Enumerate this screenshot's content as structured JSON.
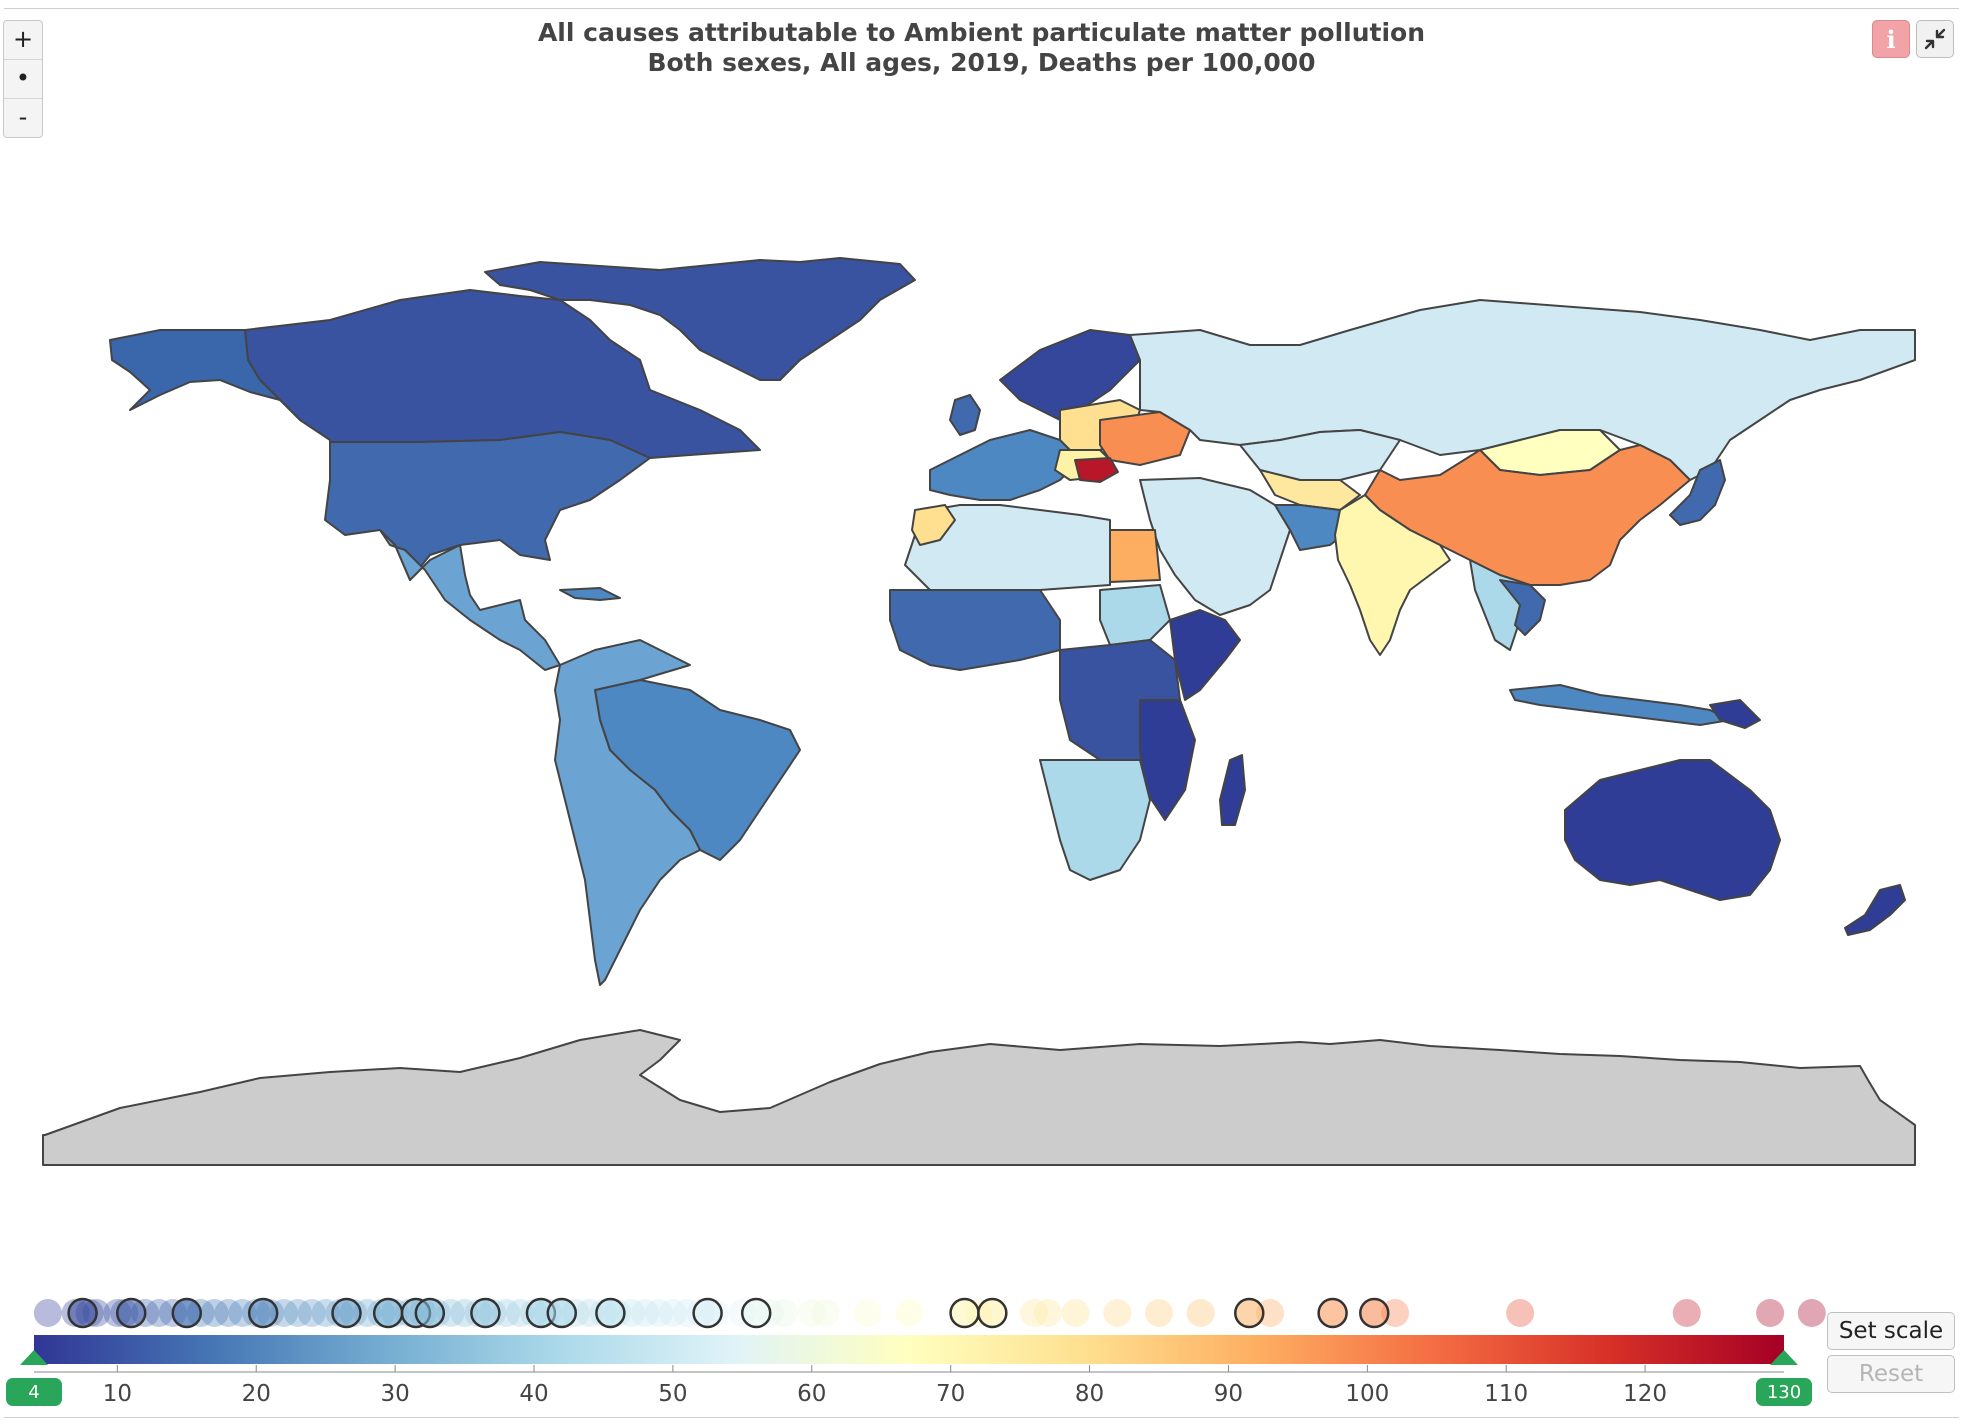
{
  "header": {
    "title_line1": "All causes attributable to Ambient particulate matter pollution",
    "title_line2": "Both sexes, All ages, 2019, Deaths per 100,000"
  },
  "map_controls": {
    "zoom_in": "+",
    "reset_view": "•",
    "zoom_out": "-",
    "info_icon": "i",
    "collapse_icon": "collapse-arrows"
  },
  "buttons": {
    "set_scale": "Set scale",
    "reset": "Reset"
  },
  "colors": {
    "ocean": "#ffffff",
    "no_data": "#cccccc",
    "border": "#444444",
    "handle": "#2aa65a"
  },
  "chart_data": {
    "type": "choropleth",
    "color_scale": {
      "min": 4,
      "max": 130,
      "min_label": "4",
      "max_label": "130",
      "ticks": [
        "10",
        "20",
        "30",
        "40",
        "50",
        "60",
        "70",
        "80",
        "90",
        "100",
        "110",
        "120"
      ],
      "stops": [
        "#313695",
        "#4575b4",
        "#74add1",
        "#abd9e9",
        "#e0f3f8",
        "#ffffbf",
        "#fee090",
        "#fdae61",
        "#f46d43",
        "#d73027",
        "#a50026"
      ]
    },
    "legend_dots": [
      5,
      7,
      8,
      8.5,
      10,
      10.5,
      12,
      13,
      14,
      15,
      16,
      17,
      18,
      19,
      20,
      21,
      22,
      23,
      24,
      25,
      26,
      27,
      28,
      29,
      30,
      31,
      32,
      33,
      34,
      35,
      36,
      37,
      38,
      39,
      40,
      41,
      42,
      43,
      44,
      45,
      46,
      47,
      48,
      49,
      50,
      51,
      52,
      53,
      55,
      57,
      58,
      60,
      61,
      64,
      67,
      72,
      76,
      77,
      79,
      82,
      85,
      88,
      93,
      102,
      111,
      123,
      129,
      132
    ],
    "legend_ringed": [
      7.5,
      11,
      15,
      20.5,
      26.5,
      29.5,
      31.5,
      32.5,
      36.5,
      40.5,
      42,
      45.5,
      52.5,
      56,
      71,
      73,
      91.5,
      97.5,
      100.5
    ],
    "regions": [
      {
        "name": "China",
        "value": 100
      },
      {
        "name": "India",
        "value": 70
      },
      {
        "name": "Egypt",
        "value": 85
      },
      {
        "name": "Bulgaria",
        "value": 125
      },
      {
        "name": "Ukraine",
        "value": 100
      },
      {
        "name": "Russia",
        "value": 45
      },
      {
        "name": "United States",
        "value": 15
      },
      {
        "name": "Canada",
        "value": 7
      },
      {
        "name": "Brazil",
        "value": 22
      },
      {
        "name": "Australia",
        "value": 5
      },
      {
        "name": "Somalia",
        "value": 6
      },
      {
        "name": "South Africa",
        "value": 38
      },
      {
        "name": "Mexico",
        "value": 26
      },
      {
        "name": "Antarctica",
        "value": null
      }
    ]
  }
}
